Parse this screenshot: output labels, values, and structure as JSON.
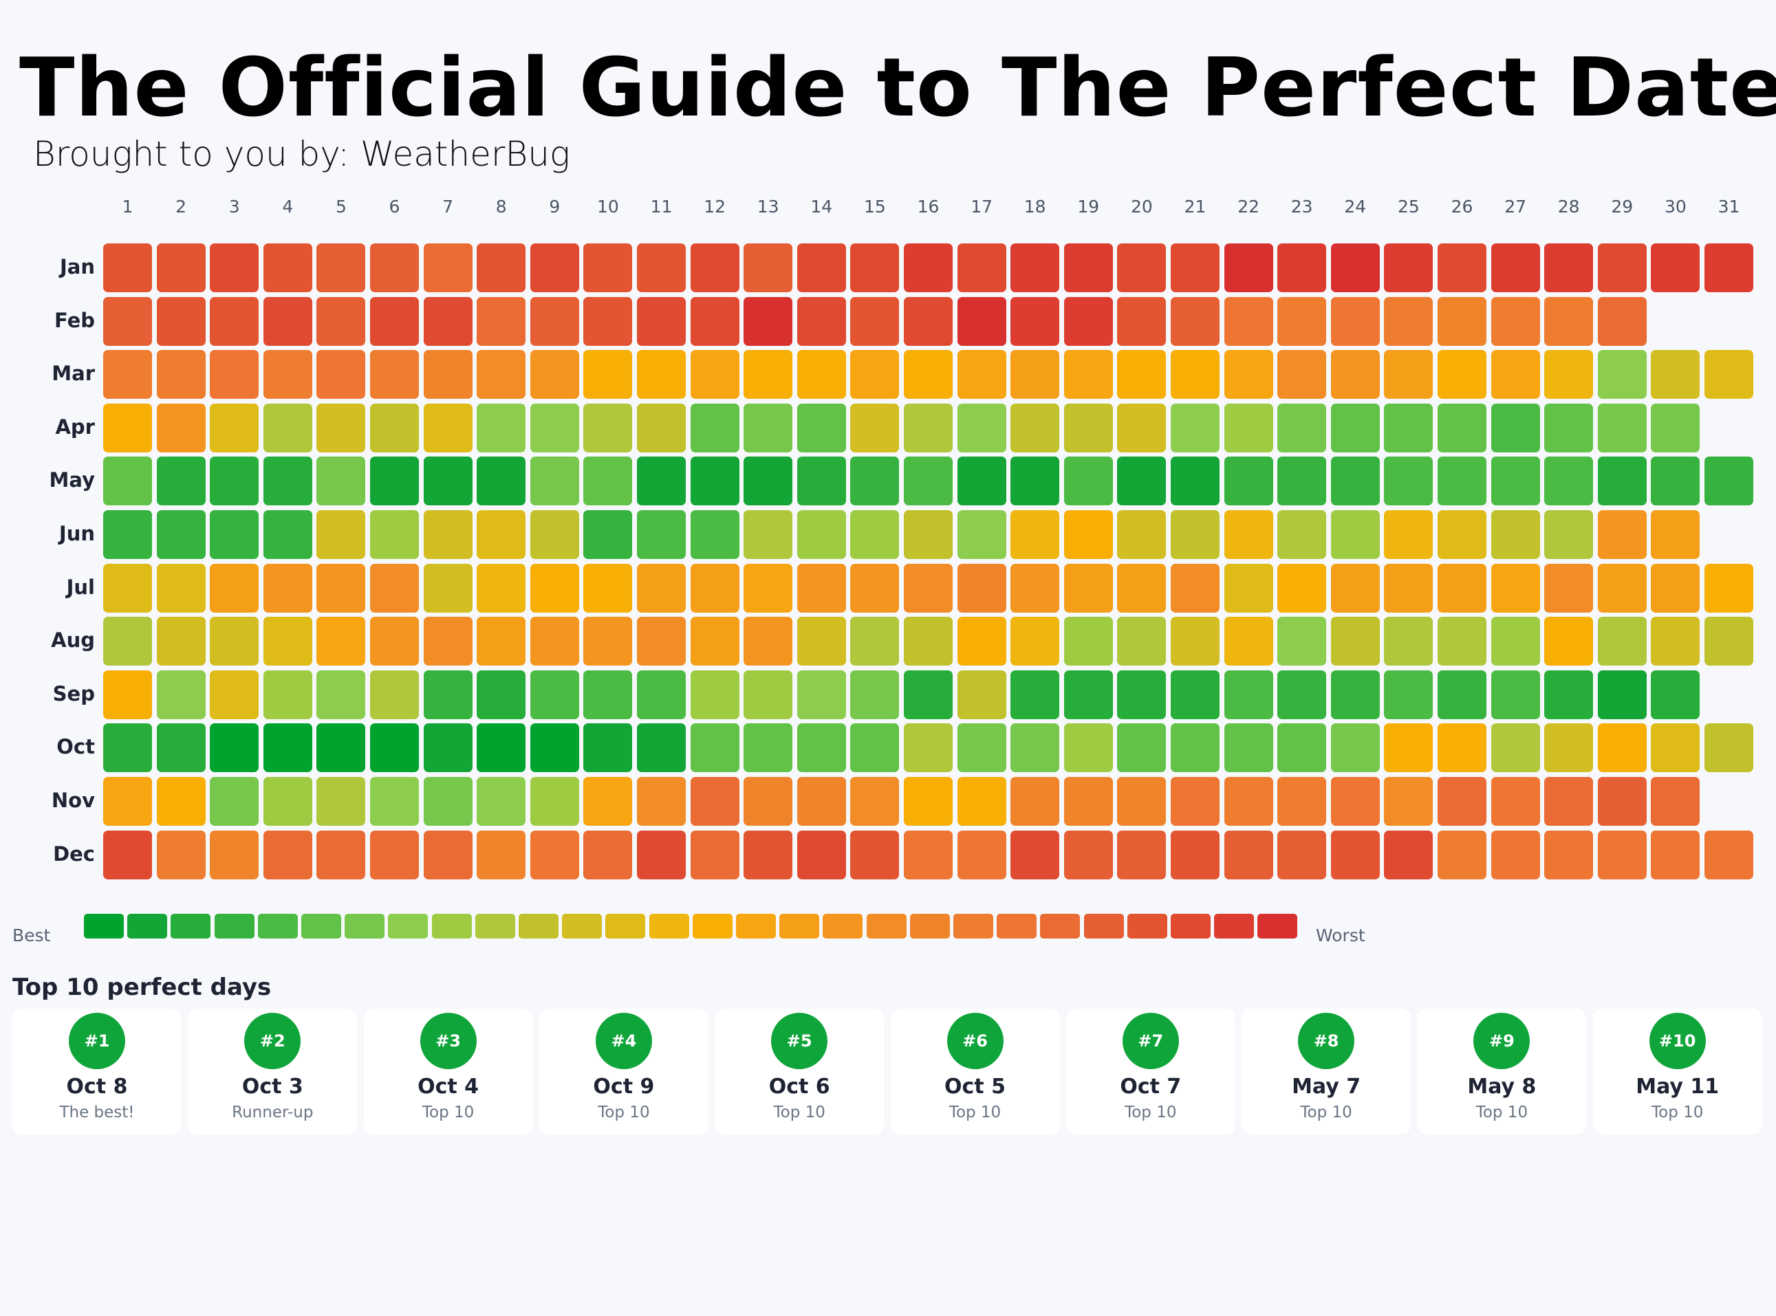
{
  "title": "The Official Guide to The Perfect Date",
  "subtitle": "Brought to you by: WeatherBug",
  "chart_data": {
    "type": "heatmap",
    "x_categories": [
      "1",
      "2",
      "3",
      "4",
      "5",
      "6",
      "7",
      "8",
      "9",
      "10",
      "11",
      "12",
      "13",
      "14",
      "15",
      "16",
      "17",
      "18",
      "19",
      "20",
      "21",
      "22",
      "23",
      "24",
      "25",
      "26",
      "27",
      "28",
      "29",
      "30",
      "31"
    ],
    "y_categories": [
      "Jan",
      "Feb",
      "Mar",
      "Apr",
      "May",
      "Jun",
      "Jul",
      "Aug",
      "Sep",
      "Oct",
      "Nov",
      "Dec"
    ],
    "value_scale": "rank level 0 (best) to 27 (worst)",
    "values": [
      [
        24,
        24,
        25,
        24,
        23,
        23,
        22,
        24,
        25,
        24,
        24,
        25,
        23,
        25,
        25,
        26,
        25,
        26,
        26,
        25,
        25,
        27,
        26,
        27,
        26,
        25,
        26,
        26,
        25,
        26,
        26
      ],
      [
        23,
        24,
        24,
        25,
        23,
        25,
        25,
        22,
        23,
        24,
        25,
        25,
        27,
        25,
        24,
        25,
        27,
        26,
        26,
        24,
        23,
        21,
        20,
        21,
        20,
        19,
        20,
        20,
        22
      ],
      [
        20,
        20,
        21,
        20,
        21,
        20,
        19,
        18,
        17,
        14,
        14,
        15,
        14,
        14,
        15,
        14,
        15,
        16,
        15,
        14,
        14,
        15,
        18,
        17,
        16,
        14,
        15,
        13,
        7,
        11,
        12
      ],
      [
        14,
        17,
        12,
        9,
        11,
        10,
        12,
        7,
        7,
        9,
        10,
        5,
        6,
        5,
        11,
        9,
        7,
        10,
        10,
        11,
        7,
        8,
        6,
        5,
        5,
        5,
        4,
        5,
        6,
        6
      ],
      [
        5,
        2,
        2,
        2,
        6,
        1,
        1,
        1,
        6,
        5,
        1,
        1,
        1,
        2,
        3,
        4,
        1,
        1,
        4,
        1,
        1,
        3,
        3,
        3,
        4,
        4,
        4,
        4,
        2,
        3,
        3
      ],
      [
        3,
        3,
        3,
        3,
        11,
        8,
        11,
        12,
        10,
        3,
        4,
        4,
        9,
        8,
        8,
        10,
        7,
        13,
        14,
        11,
        10,
        13,
        9,
        8,
        13,
        12,
        10,
        9,
        17,
        16
      ],
      [
        12,
        12,
        16,
        17,
        17,
        18,
        11,
        13,
        14,
        14,
        16,
        16,
        15,
        17,
        17,
        18,
        19,
        17,
        16,
        16,
        18,
        12,
        14,
        16,
        16,
        16,
        15,
        18,
        16,
        16,
        14
      ],
      [
        9,
        11,
        11,
        12,
        15,
        17,
        18,
        16,
        17,
        17,
        18,
        16,
        17,
        11,
        9,
        10,
        14,
        13,
        8,
        9,
        11,
        13,
        7,
        10,
        9,
        9,
        8,
        14,
        9,
        11,
        10
      ],
      [
        14,
        7,
        12,
        8,
        7,
        9,
        3,
        2,
        4,
        4,
        4,
        8,
        8,
        7,
        6,
        2,
        10,
        2,
        2,
        2,
        2,
        4,
        3,
        3,
        4,
        3,
        4,
        2,
        1,
        2
      ],
      [
        2,
        2,
        0,
        0,
        0,
        0,
        1,
        0,
        0,
        1,
        1,
        5,
        5,
        5,
        5,
        9,
        6,
        6,
        8,
        5,
        5,
        5,
        5,
        6,
        14,
        14,
        9,
        11,
        14,
        12,
        10
      ],
      [
        15,
        14,
        6,
        8,
        9,
        7,
        6,
        7,
        8,
        15,
        18,
        22,
        19,
        19,
        18,
        14,
        14,
        19,
        19,
        19,
        21,
        20,
        20,
        21,
        18,
        22,
        21,
        22,
        23,
        22
      ],
      [
        25,
        20,
        19,
        22,
        22,
        22,
        22,
        19,
        21,
        22,
        25,
        22,
        24,
        25,
        24,
        21,
        21,
        25,
        23,
        23,
        24,
        23,
        23,
        24,
        25,
        20,
        21,
        21,
        21,
        21,
        21
      ]
    ],
    "legend": {
      "low_label": "Best",
      "high_label": "Worst"
    },
    "colorscale": [
      "#00a32e",
      "#13a535",
      "#27ae3a",
      "#36b23e",
      "#4cbb44",
      "#62c247",
      "#76c74c",
      "#8ccd4e",
      "#9fcb42",
      "#afc73a",
      "#c1c12b",
      "#d2be22",
      "#dfbb18",
      "#eeb60e",
      "#f7ae05",
      "#f7a510",
      "#f59f18",
      "#f3951e",
      "#f28c26",
      "#f0842a",
      "#ef7d30",
      "#ee7532",
      "#ea6b33",
      "#e65e33",
      "#e35531",
      "#e04a30",
      "#dc3d30",
      "#d7302f"
    ]
  },
  "top10": {
    "heading": "Top 10 perfect days",
    "items": [
      {
        "rank": "#1",
        "date": "Oct 8",
        "note": "The best!"
      },
      {
        "rank": "#2",
        "date": "Oct 3",
        "note": "Runner-up"
      },
      {
        "rank": "#3",
        "date": "Oct 4",
        "note": "Top 10"
      },
      {
        "rank": "#4",
        "date": "Oct 9",
        "note": "Top 10"
      },
      {
        "rank": "#5",
        "date": "Oct 6",
        "note": "Top 10"
      },
      {
        "rank": "#6",
        "date": "Oct 5",
        "note": "Top 10"
      },
      {
        "rank": "#7",
        "date": "Oct 7",
        "note": "Top 10"
      },
      {
        "rank": "#8",
        "date": "May 7",
        "note": "Top 10"
      },
      {
        "rank": "#9",
        "date": "May 8",
        "note": "Top 10"
      },
      {
        "rank": "#10",
        "date": "May 11",
        "note": "Top 10"
      }
    ]
  }
}
